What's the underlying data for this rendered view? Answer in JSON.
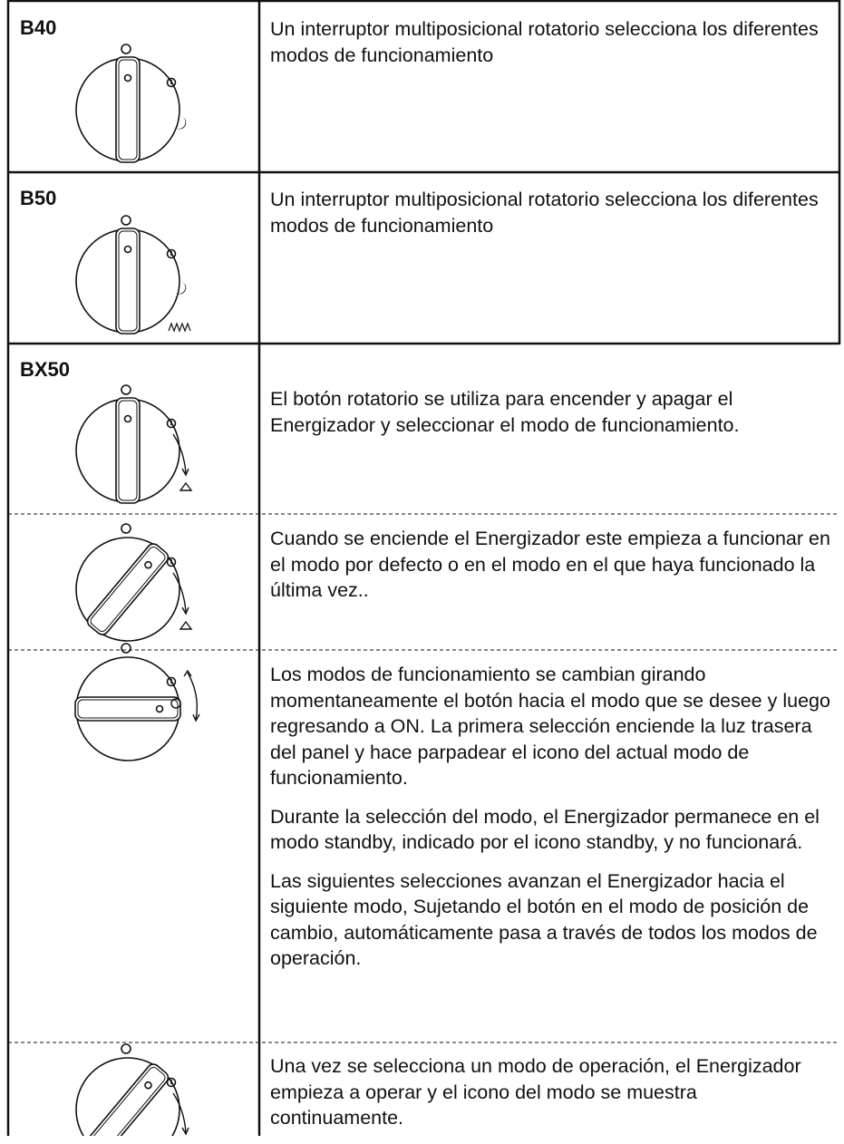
{
  "table": {
    "rows": [
      {
        "label": "B40",
        "paragraphs": [
          "Un interruptor multiposicional rotatorio selecciona los diferentes modos de funcionamiento"
        ]
      },
      {
        "label": "B50",
        "paragraphs": [
          "Un interruptor multiposicional rotatorio selecciona los diferentes modos de funcionamiento"
        ]
      },
      {
        "label": "BX50",
        "paragraphs": [
          "El botón rotatorio se utiliza para encender y apagar el Energizador y seleccionar el modo de funcionamiento."
        ]
      },
      {
        "paragraphs": [
          "Cuando se enciende el Energizador este empieza a funcionar en el modo por defecto o en el modo en el que haya funcionado la última vez.."
        ]
      },
      {
        "paragraphs": [
          "Los modos de funcionamiento se cambian girando momentaneamente el botón hacia el modo que se desee y luego regresando a ON.  La primera selección enciende la luz trasera del panel y hace parpadear el icono del actual modo de funcionamiento.",
          "Durante la selección del modo, el Energizador permanece en el modo standby, indicado por el icono standby, y no funcionará.",
          "Las siguientes selecciones avanzan el Energizador hacia el siguiente modo, Sujetando el botón en el modo de posición de cambio, automáticamente pasa a través de todos los modos de operación."
        ]
      },
      {
        "paragraphs": [
          "Una vez se selecciona un modo de operación, el Energizador empieza a operar y el icono del modo se muestra continuamente."
        ]
      }
    ]
  }
}
